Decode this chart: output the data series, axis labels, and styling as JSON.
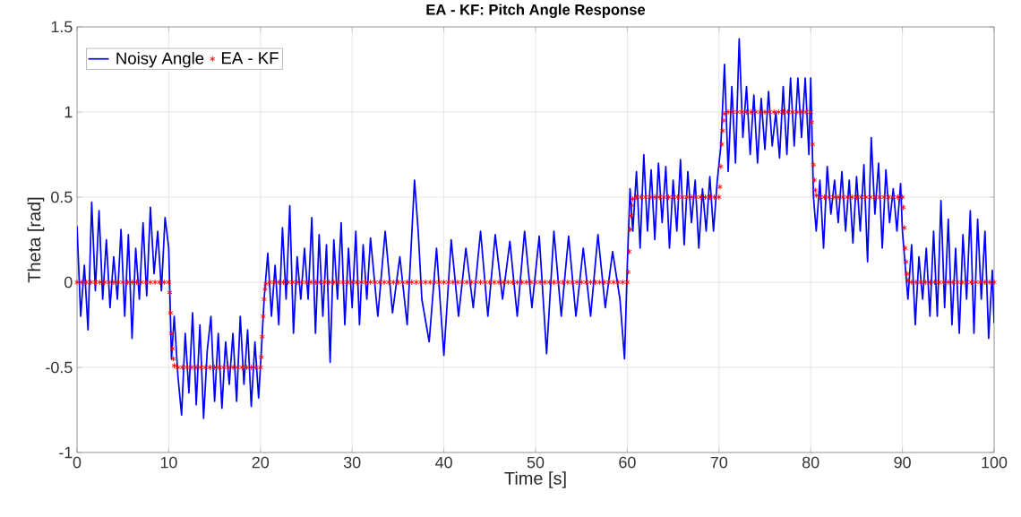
{
  "chart_data": {
    "type": "line",
    "title": "EA - KF: Pitch Angle Response",
    "xlabel": "Time [s]",
    "ylabel": "Theta [rad]",
    "xlim": [
      0,
      100
    ],
    "xticks": [
      0,
      10,
      20,
      30,
      40,
      50,
      60,
      70,
      80,
      90,
      100
    ],
    "ylim": [
      -1,
      1.5
    ],
    "yticks": [
      -1,
      -0.5,
      0,
      0.5,
      1,
      1.5
    ],
    "grid": true,
    "legend": "top left",
    "series": [
      {
        "name": "Noisy Angle",
        "type": "line",
        "color": "#0000ff",
        "marker": "none",
        "line_style": "solid",
        "x": [
          0,
          0.4,
          0.8,
          1.2,
          1.6,
          2.0,
          2.4,
          2.8,
          3.2,
          3.6,
          4.0,
          4.4,
          4.8,
          5.2,
          5.6,
          6.0,
          6.4,
          6.8,
          7.2,
          7.6,
          8.0,
          8.4,
          8.8,
          9.2,
          9.6,
          10.0,
          10.3,
          10.6,
          11.0,
          11.4,
          11.8,
          12.2,
          12.6,
          13.0,
          13.4,
          13.8,
          14.2,
          14.6,
          15.0,
          15.4,
          15.8,
          16.2,
          16.6,
          17.0,
          17.4,
          17.8,
          18.2,
          18.6,
          19.0,
          19.4,
          19.8,
          20.1,
          20.4,
          20.8,
          21.2,
          21.6,
          22.0,
          22.4,
          22.8,
          23.2,
          23.6,
          24.0,
          24.4,
          24.8,
          25.2,
          25.6,
          26.0,
          26.4,
          26.8,
          27.2,
          27.6,
          28.0,
          28.4,
          28.8,
          29.2,
          29.6,
          30.0,
          30.4,
          30.8,
          31.2,
          31.6,
          32.0,
          32.8,
          33.6,
          34.4,
          35.2,
          36.0,
          36.8,
          37.2,
          37.6,
          38.4,
          39.2,
          40.0,
          40.8,
          41.6,
          42.4,
          43.2,
          44.0,
          44.8,
          45.6,
          46.4,
          47.2,
          48.0,
          48.8,
          49.6,
          50.4,
          51.2,
          52.0,
          52.8,
          53.6,
          54.4,
          55.2,
          56.0,
          56.8,
          57.6,
          58.4,
          59.2,
          59.7,
          60.0,
          60.3,
          60.6,
          61.0,
          61.4,
          61.8,
          62.2,
          62.6,
          63.0,
          63.4,
          63.8,
          64.2,
          64.6,
          65.0,
          65.4,
          65.8,
          66.2,
          66.6,
          67.0,
          67.4,
          67.8,
          68.2,
          68.6,
          69.0,
          69.4,
          69.8,
          70.2,
          70.6,
          71.0,
          71.4,
          71.8,
          72.2,
          72.6,
          73.0,
          73.4,
          73.8,
          74.2,
          74.6,
          75.0,
          75.4,
          75.8,
          76.2,
          76.6,
          77.0,
          77.4,
          77.8,
          78.2,
          78.6,
          79.0,
          79.4,
          79.8,
          80.0,
          80.3,
          80.6,
          81.0,
          81.4,
          81.8,
          82.2,
          82.6,
          83.0,
          83.4,
          83.8,
          84.2,
          84.6,
          85.0,
          85.4,
          85.8,
          86.2,
          86.6,
          87.0,
          87.4,
          87.8,
          88.2,
          88.6,
          89.0,
          89.4,
          89.8,
          90.0,
          90.3,
          90.6,
          91.0,
          91.4,
          91.8,
          92.2,
          92.6,
          93.0,
          93.4,
          93.8,
          94.2,
          94.6,
          95.0,
          95.4,
          95.8,
          96.2,
          96.6,
          97.0,
          97.4,
          97.8,
          98.2,
          98.6,
          99.0,
          99.4,
          99.8,
          100
        ],
        "values": [
          0.33,
          -0.2,
          0.1,
          -0.28,
          0.47,
          -0.05,
          0.42,
          -0.1,
          0.25,
          -0.15,
          0.15,
          -0.1,
          0.31,
          -0.2,
          0.28,
          -0.33,
          0.2,
          -0.1,
          0.35,
          -0.08,
          0.44,
          0.05,
          0.3,
          -0.05,
          0.38,
          0.2,
          -0.45,
          -0.2,
          -0.55,
          -0.78,
          -0.3,
          -0.65,
          -0.18,
          -0.72,
          -0.25,
          -0.8,
          -0.4,
          -0.2,
          -0.7,
          -0.3,
          -0.74,
          -0.35,
          -0.6,
          -0.3,
          -0.7,
          -0.2,
          -0.6,
          -0.28,
          -0.73,
          -0.35,
          -0.68,
          -0.4,
          -0.1,
          0.17,
          -0.2,
          0.1,
          -0.25,
          0.32,
          -0.1,
          0.45,
          -0.3,
          0.15,
          -0.1,
          0.2,
          -0.1,
          0.38,
          -0.3,
          0.28,
          -0.2,
          0.22,
          -0.47,
          0.25,
          -0.1,
          0.35,
          -0.25,
          0.2,
          -0.15,
          0.3,
          -0.25,
          0.22,
          -0.1,
          0.26,
          -0.2,
          0.3,
          -0.18,
          0.15,
          -0.25,
          0.6,
          0.3,
          -0.1,
          -0.35,
          0.2,
          -0.43,
          0.25,
          -0.2,
          0.2,
          -0.15,
          0.3,
          -0.2,
          0.28,
          -0.1,
          0.24,
          -0.2,
          0.3,
          -0.15,
          0.27,
          -0.42,
          0.3,
          -0.2,
          0.27,
          -0.2,
          0.2,
          -0.2,
          0.28,
          -0.15,
          0.18,
          -0.1,
          -0.45,
          0.1,
          0.55,
          0.3,
          0.65,
          0.2,
          0.75,
          0.3,
          0.66,
          0.25,
          0.7,
          0.35,
          0.68,
          0.2,
          0.6,
          0.3,
          0.72,
          0.22,
          0.65,
          0.35,
          0.6,
          0.2,
          0.55,
          0.3,
          0.62,
          0.3,
          0.59,
          0.8,
          1.28,
          0.65,
          1.15,
          0.7,
          1.43,
          0.85,
          1.15,
          0.75,
          1.1,
          0.7,
          1.08,
          0.78,
          1.12,
          0.8,
          1.0,
          0.73,
          1.15,
          0.75,
          1.2,
          0.8,
          1.2,
          0.85,
          1.2,
          0.75,
          1.2,
          0.5,
          0.3,
          0.6,
          0.2,
          0.68,
          0.4,
          0.6,
          0.35,
          0.65,
          0.3,
          0.6,
          0.23,
          0.62,
          0.3,
          0.69,
          0.12,
          0.85,
          0.4,
          0.7,
          0.2,
          0.66,
          0.35,
          0.55,
          0.3,
          0.58,
          0.3,
          0.1,
          -0.1,
          0.22,
          -0.25,
          0.15,
          -0.1,
          0.2,
          -0.2,
          0.3,
          -0.2,
          0.48,
          -0.15,
          0.37,
          -0.25,
          0.2,
          -0.3,
          0.28,
          -0.1,
          0.42,
          -0.3,
          0.37,
          -0.1,
          0.3,
          -0.33,
          0.07,
          -0.24
        ]
      },
      {
        "name": "EA - KF",
        "type": "scatter",
        "color": "#ff0000",
        "marker": "cross",
        "x": [
          0,
          0.5,
          1,
          1.5,
          2,
          2.5,
          3,
          3.5,
          4,
          4.5,
          5,
          5.5,
          6,
          6.5,
          7,
          7.5,
          8,
          8.5,
          9,
          9.5,
          10,
          10.1,
          10.2,
          10.3,
          10.4,
          10.5,
          10.6,
          11,
          11.5,
          12,
          12.5,
          13,
          13.5,
          14,
          14.5,
          15,
          15.5,
          16,
          16.5,
          17,
          17.5,
          18,
          18.5,
          19,
          19.5,
          20,
          20.1,
          20.2,
          20.3,
          20.4,
          20.5,
          20.6,
          21,
          21.5,
          22,
          22.5,
          23,
          23.5,
          24,
          24.5,
          25,
          25.5,
          26,
          26.5,
          27,
          27.5,
          28,
          28.5,
          29,
          29.5,
          30,
          30.5,
          31,
          31.5,
          32,
          32.5,
          33,
          33.5,
          34,
          34.5,
          35,
          35.5,
          36,
          36.5,
          37,
          37.5,
          38,
          38.5,
          39,
          39.5,
          40,
          40.5,
          41,
          41.5,
          42,
          42.5,
          43,
          43.5,
          44,
          44.5,
          45,
          45.5,
          46,
          46.5,
          47,
          47.5,
          48,
          48.5,
          49,
          49.5,
          50,
          50.5,
          51,
          51.5,
          52,
          52.5,
          53,
          53.5,
          54,
          54.5,
          55,
          55.5,
          56,
          56.5,
          57,
          57.5,
          58,
          58.5,
          59,
          59.5,
          60,
          60.1,
          60.2,
          60.3,
          60.4,
          60.5,
          60.6,
          61,
          61.5,
          62,
          62.5,
          63,
          63.5,
          64,
          64.5,
          65,
          65.5,
          66,
          66.5,
          67,
          67.5,
          68,
          68.5,
          69,
          69.5,
          70,
          70.1,
          70.2,
          70.3,
          70.4,
          70.5,
          70.6,
          71,
          71.5,
          72,
          72.5,
          73,
          73.5,
          74,
          74.5,
          75,
          75.5,
          76,
          76.5,
          77,
          77.5,
          78,
          78.5,
          79,
          79.5,
          80,
          80.1,
          80.2,
          80.3,
          80.4,
          80.5,
          80.6,
          81,
          81.5,
          82,
          82.5,
          83,
          83.5,
          84,
          84.5,
          85,
          85.5,
          86,
          86.5,
          87,
          87.5,
          88,
          88.5,
          89,
          89.5,
          90,
          90.1,
          90.2,
          90.3,
          90.4,
          90.5,
          90.6,
          91,
          91.5,
          92,
          92.5,
          93,
          93.5,
          94,
          94.5,
          95,
          95.5,
          96,
          96.5,
          97,
          97.5,
          98,
          98.5,
          99,
          99.5,
          100
        ],
        "values": [
          0,
          0,
          0,
          0,
          0,
          0,
          0,
          0,
          0,
          0,
          0,
          0,
          0,
          0,
          0,
          0,
          0,
          0,
          0,
          0,
          0,
          -0.06,
          -0.18,
          -0.3,
          -0.39,
          -0.45,
          -0.49,
          -0.5,
          -0.5,
          -0.5,
          -0.5,
          -0.5,
          -0.5,
          -0.5,
          -0.5,
          -0.5,
          -0.5,
          -0.5,
          -0.5,
          -0.5,
          -0.5,
          -0.5,
          -0.5,
          -0.5,
          -0.5,
          -0.5,
          -0.44,
          -0.32,
          -0.2,
          -0.1,
          -0.04,
          -0.01,
          0,
          0,
          0,
          0,
          0,
          0,
          0,
          0,
          0,
          0,
          0,
          0,
          0,
          0,
          0,
          0,
          0,
          0,
          0,
          0,
          0,
          0,
          0,
          0,
          0,
          0,
          0,
          0,
          0,
          0,
          0,
          0,
          0,
          0,
          0,
          0,
          0,
          0,
          0,
          0,
          0,
          0,
          0,
          0,
          0,
          0,
          0,
          0,
          0,
          0,
          0,
          0,
          0,
          0,
          0,
          0,
          0,
          0,
          0,
          0,
          0,
          0,
          0,
          0,
          0,
          0,
          0,
          0,
          0,
          0,
          0,
          0,
          0,
          0,
          0,
          0,
          0,
          0,
          0,
          0.06,
          0.18,
          0.31,
          0.39,
          0.45,
          0.49,
          0.5,
          0.5,
          0.5,
          0.5,
          0.5,
          0.5,
          0.5,
          0.5,
          0.5,
          0.5,
          0.5,
          0.5,
          0.5,
          0.5,
          0.5,
          0.5,
          0.5,
          0.5,
          0.5,
          0.56,
          0.68,
          0.81,
          0.89,
          0.95,
          0.99,
          1,
          1,
          1,
          1,
          1,
          1,
          1,
          1,
          1,
          1,
          1,
          1,
          1,
          1,
          1,
          1,
          1,
          1,
          1,
          0.94,
          0.81,
          0.69,
          0.6,
          0.54,
          0.51,
          0.5,
          0.5,
          0.5,
          0.5,
          0.5,
          0.5,
          0.5,
          0.5,
          0.5,
          0.5,
          0.5,
          0.5,
          0.5,
          0.5,
          0.5,
          0.5,
          0.5,
          0.5,
          0.5,
          0.44,
          0.32,
          0.2,
          0.12,
          0.05,
          0.01,
          0,
          0,
          0,
          0,
          0,
          0,
          0,
          0,
          0,
          0,
          0,
          0,
          0,
          0,
          0,
          0,
          0,
          0,
          0
        ]
      }
    ]
  }
}
